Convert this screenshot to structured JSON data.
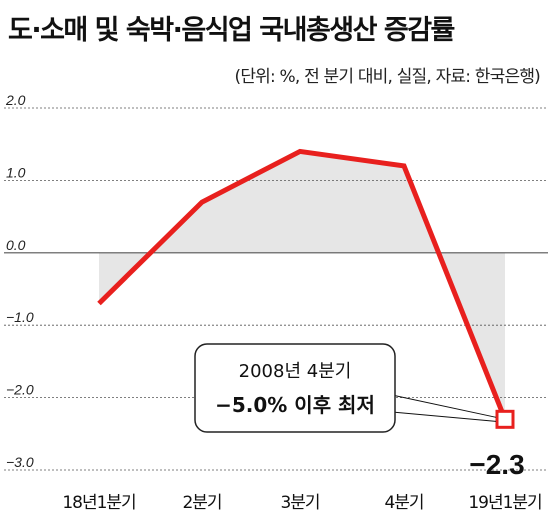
{
  "title": "도·소매 및 숙박·음식업 국내총생산 증감률",
  "subtitle": "(단위: %, 전 분기 대비, 실질, 자료: 한국은행)",
  "chart_data": {
    "type": "line",
    "categories": [
      "18년1분기",
      "2분기",
      "3분기",
      "4분기",
      "19년1분기"
    ],
    "values": [
      -0.7,
      0.7,
      1.4,
      1.2,
      -2.3
    ],
    "ylim": [
      -3.0,
      2.0
    ],
    "y_ticks": [
      "2.0",
      "1.0",
      "0.0",
      "−1.0",
      "−2.0",
      "−3.0"
    ],
    "grid": true,
    "fill_to_zero": true,
    "data_label": "−2.3",
    "annotation": {
      "line1": "2008년 4분기",
      "line2": "−5.0% 이후 최저"
    },
    "colors": {
      "line": "#e8201e",
      "grid": "#555555",
      "area": "#e6e6e6"
    }
  }
}
